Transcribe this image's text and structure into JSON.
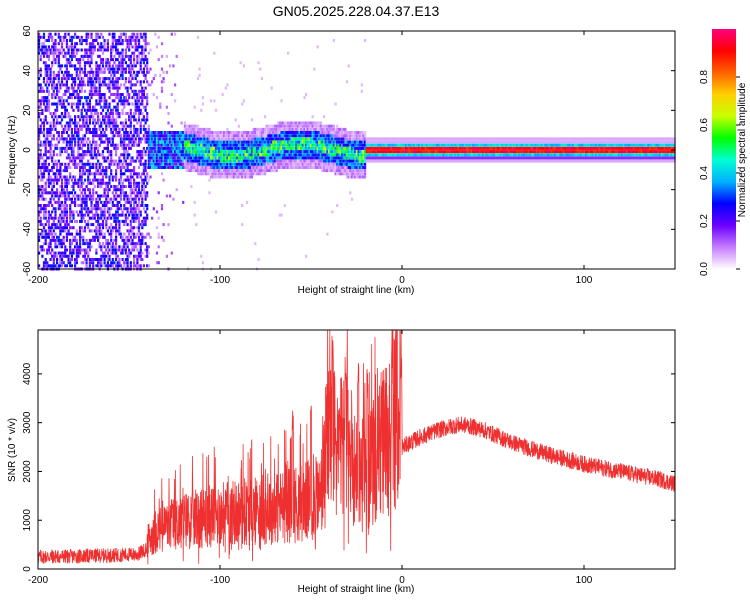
{
  "title": "GN05.2025.228.04.37.E13",
  "chart_data": [
    {
      "type": "heatmap",
      "xlabel": "Height of straight line (km)",
      "ylabel": "Frequency (Hz)",
      "xlim": [
        -200,
        150
      ],
      "ylim": [
        -60,
        60
      ],
      "xticks": [
        -200,
        -100,
        0,
        100
      ],
      "yticks": [
        60,
        40,
        20,
        0,
        -20,
        -40,
        -60
      ],
      "colorbar": {
        "label": "Normalized spectral amplitude",
        "range": [
          0.0,
          1.0
        ],
        "ticks": [
          0.0,
          0.2,
          0.4,
          0.6,
          0.8
        ],
        "colors": [
          "#ffffff",
          "#c77dff",
          "#6a00ff",
          "#0000ff",
          "#00b0ff",
          "#00ffd0",
          "#00ff00",
          "#c8ff00",
          "#ffd000",
          "#ff6000",
          "#ff0000",
          "#ff0080"
        ]
      },
      "regions": [
        {
          "x": [
            -200,
            -140
          ],
          "description": "broadband noise",
          "amplitude": 0.15
        },
        {
          "x": [
            -140,
            -20
          ],
          "center_freq": 0,
          "band_halfwidth_hz": 8,
          "amplitude": 0.35
        },
        {
          "x": [
            -20,
            150
          ],
          "center_freq": 0,
          "band_halfwidth_hz": 4,
          "amplitude": 0.9
        }
      ]
    },
    {
      "type": "line",
      "xlabel": "Height of straight line (km)",
      "ylabel": "SNR (10 * v/v)",
      "xlim": [
        -200,
        150
      ],
      "ylim": [
        0,
        4900
      ],
      "xticks": [
        -200,
        -100,
        0,
        100
      ],
      "yticks": [
        0,
        1000,
        2000,
        3000,
        4000
      ],
      "color": "#ef3030",
      "series": [
        {
          "x": [
            -200,
            -180,
            -160,
            -145,
            -140,
            -135,
            -120,
            -100,
            -80,
            -60,
            -45,
            -40,
            -35,
            -30,
            -25,
            -20,
            -15,
            -10,
            -5,
            0,
            10,
            20,
            30,
            35,
            45,
            60,
            80,
            100,
            120,
            140,
            150
          ],
          "values": [
            250,
            260,
            280,
            300,
            420,
            600,
            750,
            850,
            900,
            1000,
            1100,
            2200,
            1800,
            2000,
            1500,
            1400,
            1700,
            2000,
            2300,
            2500,
            2700,
            2850,
            2950,
            2950,
            2850,
            2600,
            2350,
            2150,
            2000,
            1850,
            1750
          ],
          "spikes": [
            {
              "x": -38,
              "y": 4850
            },
            {
              "x": -31,
              "y": 4400
            },
            {
              "x": -24,
              "y": 4250
            },
            {
              "x": -19,
              "y": 4100
            },
            {
              "x": -50,
              "y": 3700
            },
            {
              "x": -60,
              "y": 3300
            }
          ]
        }
      ]
    }
  ]
}
